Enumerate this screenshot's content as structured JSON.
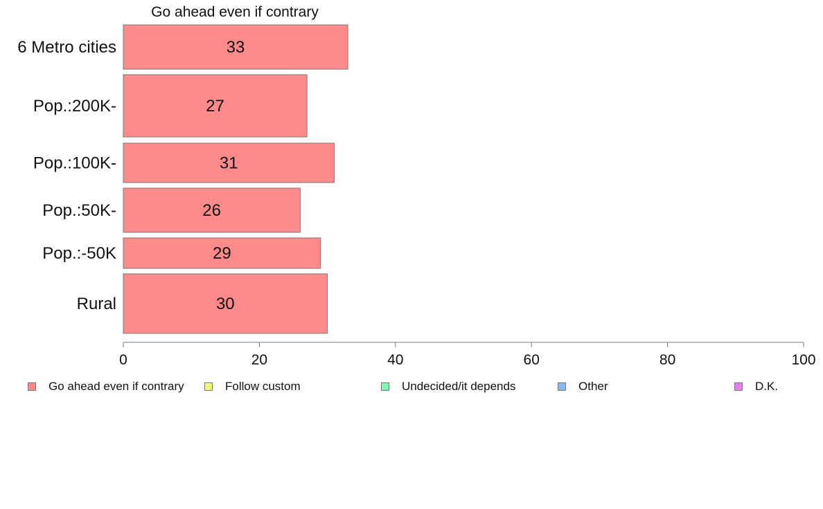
{
  "chart_data": {
    "type": "bar",
    "orientation": "horizontal",
    "title": "Go ahead even if contrary",
    "categories": [
      "6 Metro cities",
      "Pop.:200K-",
      "Pop.:100K-",
      "Pop.:50K-",
      "Pop.:-50K",
      "Rural"
    ],
    "series": [
      {
        "name": "Go ahead even if contrary",
        "values": [
          33,
          27,
          31,
          26,
          29,
          30
        ]
      }
    ],
    "data_labels": [
      "33",
      "27",
      "31",
      "26",
      "29",
      "30"
    ],
    "xlim": [
      0,
      100
    ],
    "xticks": [
      "0",
      "20",
      "40",
      "60",
      "80",
      "100"
    ],
    "grid": false,
    "legend_position": "bottom",
    "bar_color": "#ff8a8a"
  },
  "legend": [
    {
      "label": "Go ahead even if contrary",
      "color": "#ff8a8a"
    },
    {
      "label": "Follow custom",
      "color": "#f0f77d"
    },
    {
      "label": "Undecided/it depends",
      "color": "#7ef7b0"
    },
    {
      "label": "Other",
      "color": "#86b8f5"
    },
    {
      "label": "D.K.",
      "color": "#ea7cf2"
    }
  ]
}
